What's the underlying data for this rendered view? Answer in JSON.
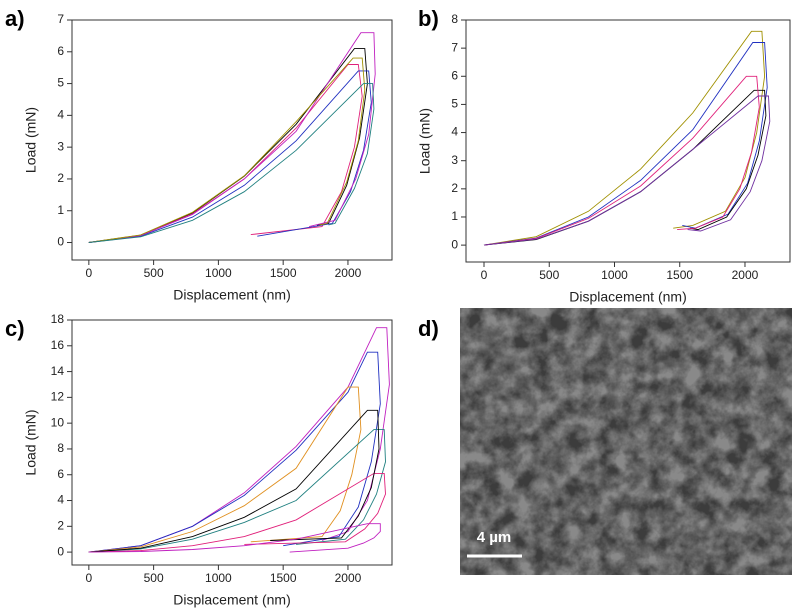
{
  "chart_data": [
    {
      "type": "line",
      "label": "a)",
      "x_label": "Displacement (nm)",
      "y_label": "Load (mN)",
      "xlim": [
        -130,
        2340
      ],
      "ylim": [
        -0.55,
        7
      ],
      "xticks": [
        0,
        500,
        1000,
        1500,
        2000
      ],
      "yticks": [
        0,
        1,
        2,
        3,
        4,
        5,
        6,
        7
      ],
      "series": [
        {
          "color": "#000000",
          "x": [
            0,
            400,
            800,
            1200,
            1600,
            2050,
            2130,
            2150,
            2090,
            1990,
            1850,
            1760
          ],
          "values": [
            0,
            0.23,
            0.93,
            2.09,
            3.72,
            6.1,
            6.1,
            5.0,
            3.3,
            1.8,
            0.6,
            0.55
          ]
        },
        {
          "color": "#e0207a",
          "x": [
            0,
            400,
            800,
            1200,
            1600,
            2000,
            2080,
            2110,
            2050,
            1950,
            1800,
            1250
          ],
          "values": [
            0,
            0.22,
            0.9,
            2.0,
            3.6,
            5.6,
            5.6,
            4.6,
            3.0,
            1.6,
            0.5,
            0.25
          ]
        },
        {
          "color": "#2030c0",
          "x": [
            0,
            400,
            800,
            1200,
            1600,
            2080,
            2160,
            2180,
            2120,
            2020,
            1880,
            1300
          ],
          "values": [
            0,
            0.2,
            0.8,
            1.8,
            3.2,
            5.4,
            5.4,
            4.4,
            2.9,
            1.6,
            0.6,
            0.2
          ]
        },
        {
          "color": "#c020c0",
          "x": [
            0,
            400,
            800,
            1200,
            1600,
            2100,
            2200,
            2210,
            2160,
            2060,
            1900,
            1700
          ],
          "values": [
            0,
            0.22,
            0.88,
            2.0,
            3.5,
            6.6,
            6.6,
            5.3,
            3.4,
            2.0,
            0.7,
            0.5
          ]
        },
        {
          "color": "#a09000",
          "x": [
            0,
            400,
            800,
            1200,
            1600,
            2040,
            2110,
            2130,
            2080,
            1990,
            1840,
            1780
          ],
          "values": [
            0,
            0.24,
            0.95,
            2.1,
            3.8,
            5.8,
            5.8,
            4.8,
            3.2,
            1.9,
            0.6,
            0.55
          ]
        },
        {
          "color": "#208080",
          "x": [
            0,
            400,
            800,
            1200,
            1600,
            2120,
            2190,
            2200,
            2150,
            2050,
            1900,
            1850
          ],
          "values": [
            0,
            0.18,
            0.7,
            1.6,
            2.9,
            5.0,
            5.0,
            4.2,
            2.8,
            1.7,
            0.6,
            0.55
          ]
        }
      ]
    },
    {
      "type": "line",
      "label": "b)",
      "x_label": "Displacement (nm)",
      "y_label": "Load (mN)",
      "xlim": [
        -138,
        2345
      ],
      "ylim": [
        -0.6,
        8
      ],
      "xticks": [
        0,
        500,
        1000,
        1500,
        2000
      ],
      "yticks": [
        0,
        1,
        2,
        3,
        4,
        5,
        6,
        7,
        8
      ],
      "series": [
        {
          "color": "#a09000",
          "x": [
            0,
            400,
            800,
            1200,
            1600,
            2050,
            2130,
            2150,
            2090,
            2000,
            1850,
            1600,
            1450
          ],
          "values": [
            0,
            0.3,
            1.2,
            2.7,
            4.7,
            7.6,
            7.6,
            6.0,
            4.0,
            2.4,
            1.2,
            0.7,
            0.6
          ]
        },
        {
          "color": "#2030c0",
          "x": [
            0,
            400,
            800,
            1200,
            1600,
            2060,
            2150,
            2170,
            2110,
            2020,
            1870,
            1620,
            1520
          ],
          "values": [
            0,
            0.25,
            1.0,
            2.3,
            4.1,
            7.2,
            7.2,
            5.6,
            3.7,
            2.2,
            1.1,
            0.6,
            0.7
          ]
        },
        {
          "color": "#000000",
          "x": [
            0,
            400,
            800,
            1200,
            1600,
            2070,
            2150,
            2160,
            2100,
            2010,
            1860,
            1640,
            1580
          ],
          "values": [
            0,
            0.2,
            0.85,
            1.9,
            3.4,
            5.5,
            5.5,
            4.6,
            3.2,
            2.0,
            1.0,
            0.55,
            0.6
          ]
        },
        {
          "color": "#e0207a",
          "x": [
            0,
            400,
            800,
            1200,
            1600,
            2010,
            2090,
            2110,
            2050,
            1960,
            1830,
            1620,
            1480
          ],
          "values": [
            0,
            0.24,
            0.95,
            2.1,
            3.8,
            6.0,
            6.0,
            4.9,
            3.3,
            2.0,
            1.0,
            0.6,
            0.55
          ]
        },
        {
          "color": "#7030a0",
          "x": [
            0,
            400,
            800,
            1200,
            1600,
            2100,
            2180,
            2190,
            2130,
            2040,
            1890,
            1660,
            1560
          ],
          "values": [
            0,
            0.21,
            0.85,
            1.9,
            3.4,
            5.3,
            5.3,
            4.4,
            3.0,
            1.9,
            0.9,
            0.5,
            0.55
          ]
        }
      ]
    },
    {
      "type": "line",
      "label": "c)",
      "x_label": "Displacement (nm)",
      "y_label": "Load (mN)",
      "xlim": [
        -130,
        2340
      ],
      "ylim": [
        -1,
        18
      ],
      "xticks": [
        0,
        500,
        1000,
        1500,
        2000
      ],
      "yticks": [
        0,
        2,
        4,
        6,
        8,
        10,
        12,
        14,
        16,
        18
      ],
      "series": [
        {
          "color": "#c020c0",
          "x": [
            0,
            400,
            800,
            1200,
            1600,
            2000,
            2220,
            2300,
            2320,
            2250,
            2150,
            2000,
            1800
          ],
          "values": [
            0,
            0.5,
            2.0,
            4.6,
            8.2,
            12.8,
            17.4,
            17.4,
            13,
            8,
            4,
            1.6,
            0.9
          ]
        },
        {
          "color": "#2030c0",
          "x": [
            0,
            400,
            800,
            1200,
            1600,
            2000,
            2150,
            2230,
            2250,
            2180,
            2080,
            1930,
            1500
          ],
          "values": [
            0,
            0.5,
            2.0,
            4.4,
            7.9,
            12.4,
            15.5,
            15.5,
            11.5,
            7,
            3.5,
            1.2,
            0.5
          ]
        },
        {
          "color": "#e09020",
          "x": [
            0,
            400,
            800,
            1200,
            1600,
            2000,
            2080,
            2100,
            2030,
            1940,
            1800,
            1250
          ],
          "values": [
            0,
            0.4,
            1.6,
            3.6,
            6.5,
            12.8,
            12.8,
            9.5,
            6,
            3.2,
            1.2,
            0.8
          ]
        },
        {
          "color": "#208080",
          "x": [
            0,
            400,
            800,
            1200,
            1600,
            2200,
            2280,
            2290,
            2220,
            2120,
            1980,
            1600
          ],
          "values": [
            0,
            0.25,
            1.0,
            2.3,
            4.0,
            9.5,
            9.5,
            7,
            4.5,
            2.5,
            1.0,
            0.6
          ]
        },
        {
          "color": "#e0207a",
          "x": [
            0,
            400,
            800,
            1200,
            1600,
            2200,
            2280,
            2290,
            2230,
            2130,
            1980,
            1200
          ],
          "values": [
            0,
            0.12,
            0.5,
            1.2,
            2.5,
            6.1,
            6.1,
            4.5,
            3,
            1.8,
            0.8,
            0.6
          ]
        },
        {
          "color": "#000000",
          "x": [
            0,
            400,
            800,
            1200,
            1600,
            2150,
            2230,
            2240,
            2180,
            2080,
            1950,
            1400
          ],
          "values": [
            0,
            0.3,
            1.2,
            2.7,
            4.9,
            11,
            11,
            8,
            5,
            2.8,
            1.1,
            0.9
          ]
        },
        {
          "color": "#c020c0",
          "x": [
            0,
            400,
            800,
            1200,
            1600,
            2150,
            2250,
            2250,
            2200,
            2120,
            2000,
            1550
          ],
          "values": [
            0,
            0.05,
            0.2,
            0.5,
            1.0,
            2.2,
            2.2,
            1.6,
            1.1,
            0.7,
            0.3,
            0
          ]
        }
      ]
    }
  ],
  "image": {
    "label": "d)",
    "scale_bar": "4 µm"
  }
}
